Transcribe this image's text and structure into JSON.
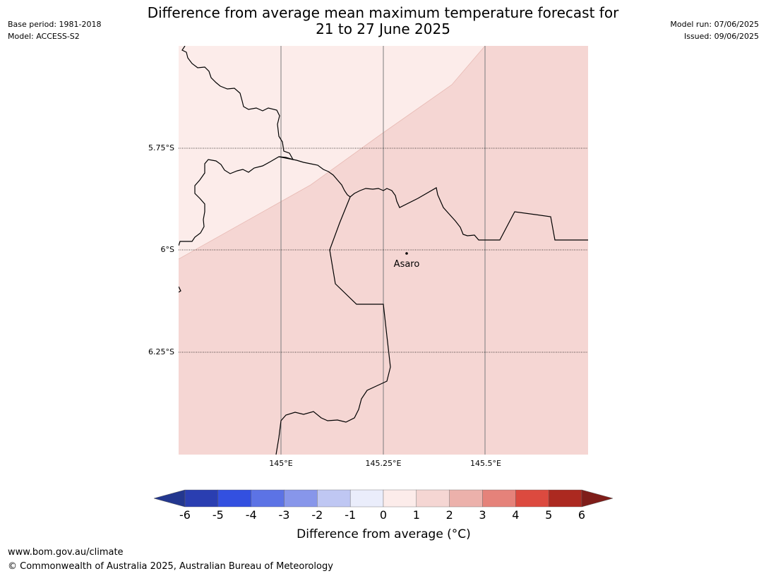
{
  "meta": {
    "base_period": "Base period: 1981-2018",
    "model": "Model: ACCESS-S2",
    "model_run": "Model run: 07/06/2025",
    "issued": "Issued: 09/06/2025"
  },
  "title": {
    "line1": "Difference from average mean maximum temperature forecast for",
    "line2": "21 to 27 June 2025"
  },
  "map": {
    "latitude_labels": [
      "5.75°S",
      "6°S",
      "6.25°S"
    ],
    "longitude_labels": [
      "145°E",
      "145.25°E",
      "145.5°E"
    ],
    "place": "Asaro",
    "zone_colors": {
      "0_to_1": "#fcecea",
      "1_to_2": "#f5d6d3"
    }
  },
  "colorbar": {
    "tick_labels": [
      "-6",
      "-5",
      "-4",
      "-3",
      "-2",
      "-1",
      "0",
      "1",
      "2",
      "3",
      "4",
      "5",
      "6"
    ],
    "colors": [
      "#23378f",
      "#2a3eb1",
      "#3350e0",
      "#5c73e5",
      "#8796ea",
      "#bfc7f3",
      "#eaedfb",
      "#fcecea",
      "#f5d6d3",
      "#ecb1ab",
      "#e5827a",
      "#dc4a3f",
      "#ac2920",
      "#7f1d19"
    ],
    "title": "Difference from average (°C)"
  },
  "footer": {
    "url": "www.bom.gov.au/climate",
    "copyright": "© Commonwealth of Australia 2025, Australian Bureau of Meteorology"
  }
}
